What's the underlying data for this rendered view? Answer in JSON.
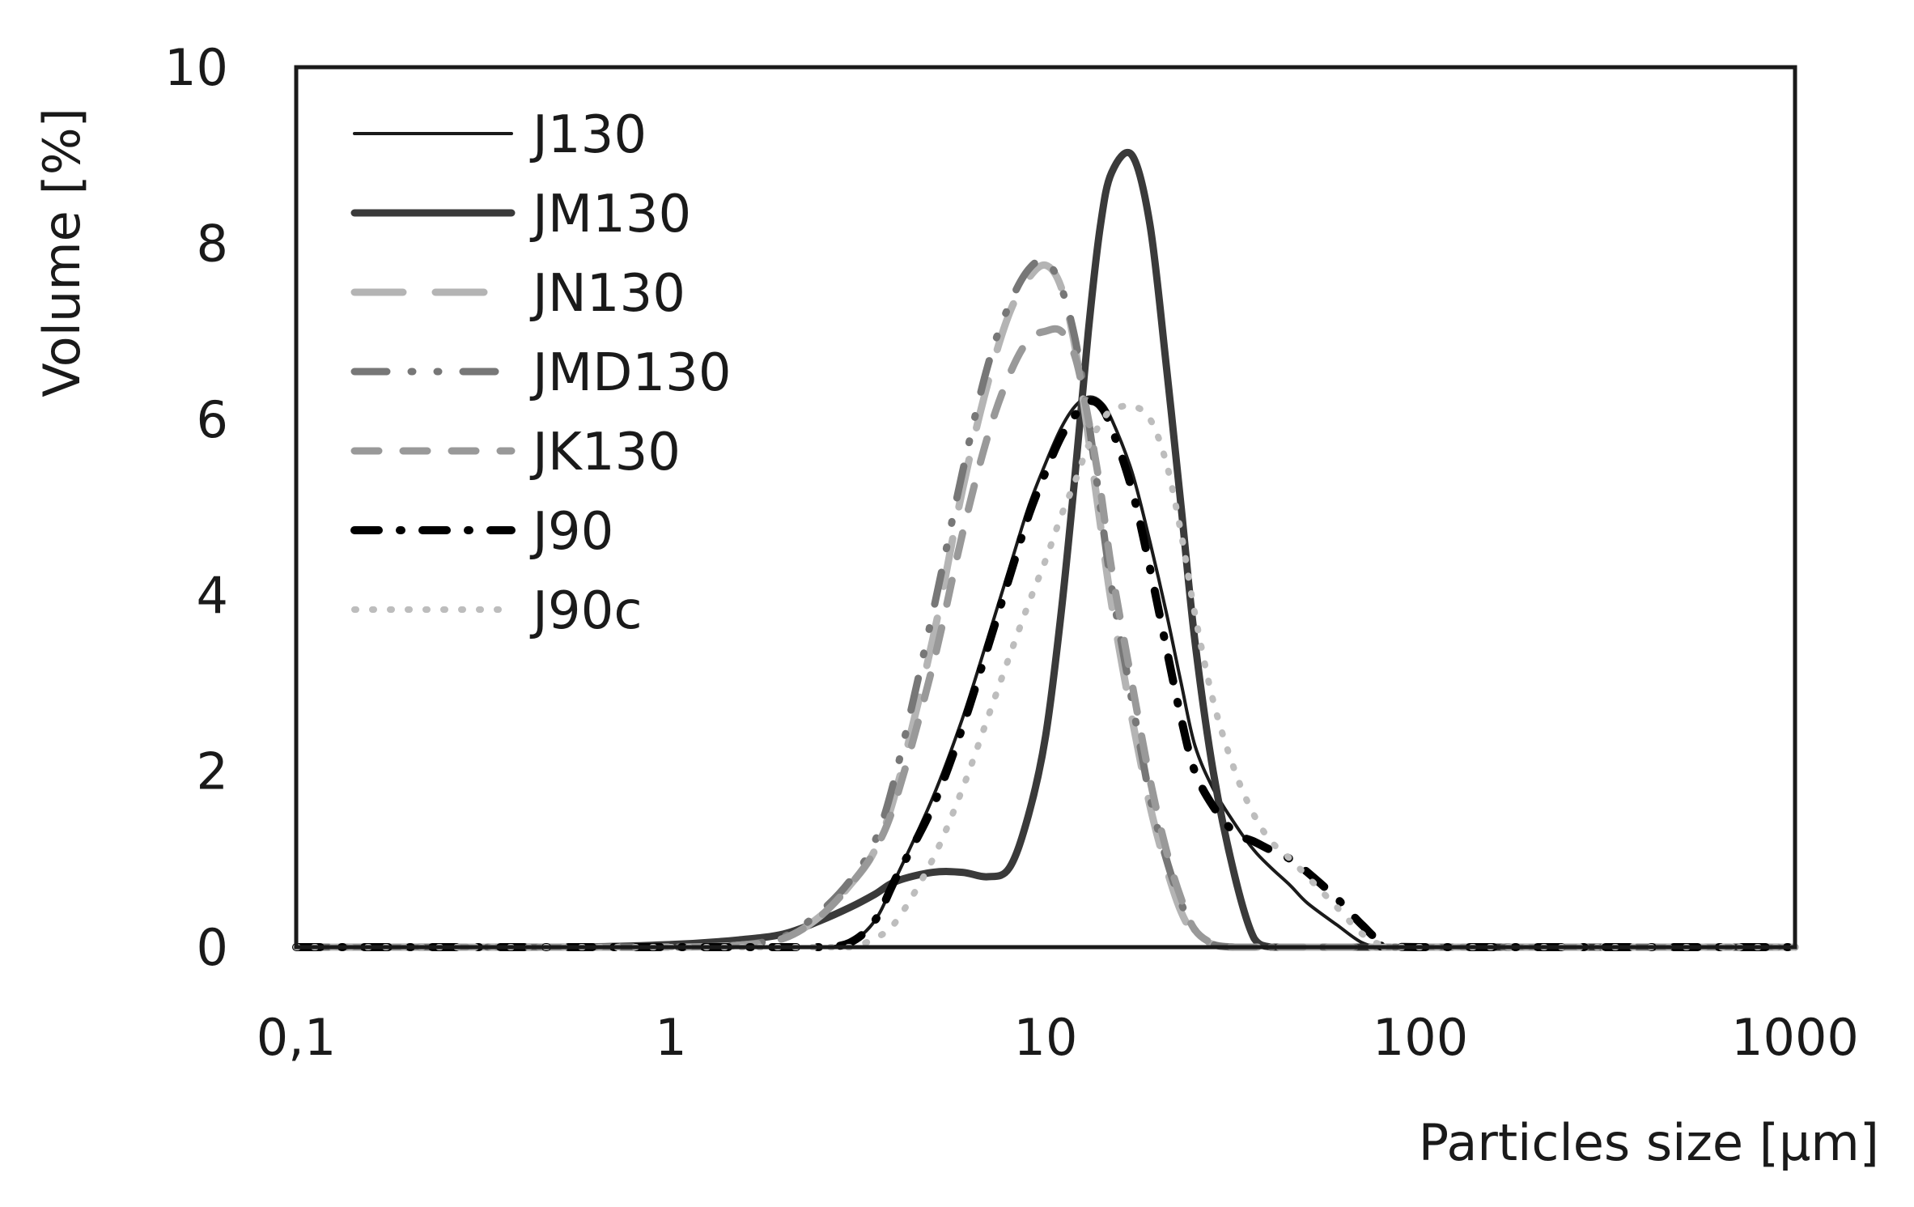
{
  "chart_data": {
    "type": "line",
    "title": "",
    "xlabel": "Particles size [µm]",
    "ylabel": "Volume [%]",
    "xscale": "log",
    "xlim": [
      0.1,
      1000
    ],
    "ylim": [
      0,
      10
    ],
    "x_ticks": [
      0.1,
      1,
      10,
      100,
      1000
    ],
    "x_tick_labels": [
      "0,1",
      "1",
      "10",
      "100",
      "1000"
    ],
    "y_ticks": [
      0,
      2,
      4,
      6,
      8,
      10
    ],
    "y_tick_labels": [
      "0",
      "2",
      "4",
      "6",
      "8",
      "10"
    ],
    "grid": false,
    "legend_position": "upper-left inside",
    "x": [
      0.1,
      0.5,
      1,
      1.5,
      2,
      2.5,
      3,
      3.5,
      4,
      5,
      6,
      7,
      8,
      9,
      10,
      11,
      12,
      13,
      14,
      15,
      17,
      19,
      21,
      23,
      25,
      28,
      32,
      36,
      40,
      45,
      50,
      60,
      70,
      80,
      100,
      1000
    ],
    "series": [
      {
        "name": "J130",
        "style": "thin-solid",
        "color": "#1a1a1a",
        "values": [
          0,
          0,
          0,
          0,
          0,
          0,
          0.05,
          0.3,
          0.8,
          1.7,
          2.6,
          3.5,
          4.3,
          5.0,
          5.5,
          5.9,
          6.15,
          6.25,
          6.2,
          6.0,
          5.4,
          4.6,
          3.8,
          3.0,
          2.3,
          1.8,
          1.4,
          1.1,
          0.9,
          0.7,
          0.5,
          0.25,
          0.05,
          0,
          0,
          0
        ]
      },
      {
        "name": "JM130",
        "style": "thick-solid",
        "color": "#3a3a3a",
        "values": [
          0,
          0,
          0.03,
          0.08,
          0.15,
          0.3,
          0.45,
          0.6,
          0.75,
          0.85,
          0.85,
          0.8,
          0.9,
          1.5,
          2.4,
          3.8,
          5.4,
          7.0,
          8.2,
          8.8,
          9.0,
          8.2,
          6.6,
          5.0,
          3.5,
          2.0,
          0.8,
          0.1,
          0,
          0,
          0,
          0,
          0,
          0,
          0,
          0
        ]
      },
      {
        "name": "JN130",
        "style": "long-dash",
        "color": "#b4b4b4",
        "values": [
          0,
          0,
          0,
          0.02,
          0.1,
          0.35,
          0.7,
          1.1,
          1.8,
          3.5,
          5.2,
          6.4,
          7.2,
          7.6,
          7.75,
          7.5,
          6.8,
          5.8,
          4.8,
          3.9,
          2.6,
          1.6,
          0.9,
          0.4,
          0.15,
          0.03,
          0,
          0,
          0,
          0,
          0,
          0,
          0,
          0,
          0,
          0
        ]
      },
      {
        "name": "JMD130",
        "style": "dash-dot-dot",
        "color": "#777777",
        "values": [
          0,
          0,
          0,
          0.02,
          0.12,
          0.4,
          0.75,
          1.2,
          2.0,
          3.8,
          5.4,
          6.6,
          7.3,
          7.7,
          7.8,
          7.5,
          6.9,
          6.0,
          5.0,
          4.1,
          2.8,
          1.7,
          1.0,
          0.5,
          0.2,
          0.03,
          0,
          0,
          0,
          0,
          0,
          0,
          0,
          0,
          0,
          0
        ]
      },
      {
        "name": "JK130",
        "style": "medium-dash",
        "color": "#999999",
        "values": [
          0,
          0,
          0,
          0.02,
          0.1,
          0.35,
          0.7,
          1.1,
          1.7,
          3.2,
          4.7,
          5.8,
          6.5,
          6.9,
          7.0,
          7.0,
          6.7,
          6.0,
          5.2,
          4.3,
          3.0,
          1.9,
          1.1,
          0.55,
          0.2,
          0.04,
          0,
          0,
          0,
          0,
          0,
          0,
          0,
          0,
          0,
          0
        ]
      },
      {
        "name": "J90",
        "style": "dash-dot",
        "color": "#000000",
        "values": [
          0,
          0,
          0,
          0,
          0,
          0,
          0.05,
          0.3,
          0.8,
          1.6,
          2.5,
          3.4,
          4.2,
          4.9,
          5.4,
          5.8,
          6.05,
          6.2,
          6.15,
          5.9,
          5.2,
          4.3,
          3.4,
          2.6,
          2.0,
          1.6,
          1.3,
          1.2,
          1.1,
          1.0,
          0.85,
          0.55,
          0.25,
          0.05,
          0,
          0
        ]
      },
      {
        "name": "J90c",
        "style": "dotted",
        "color": "#bdbdbd",
        "values": [
          0,
          0,
          0,
          0,
          0,
          0,
          0,
          0.1,
          0.3,
          1.0,
          1.8,
          2.6,
          3.3,
          3.9,
          4.4,
          4.9,
          5.3,
          5.7,
          5.95,
          6.1,
          6.15,
          6.0,
          5.5,
          4.7,
          3.8,
          2.8,
          2.0,
          1.5,
          1.2,
          1.0,
          0.8,
          0.45,
          0.15,
          0.02,
          0,
          0
        ]
      }
    ]
  },
  "legend": {
    "items": [
      {
        "label": "J130"
      },
      {
        "label": "JM130"
      },
      {
        "label": "JN130"
      },
      {
        "label": "JMD130"
      },
      {
        "label": "JK130"
      },
      {
        "label": "J90"
      },
      {
        "label": "J90c"
      }
    ]
  },
  "axes": {
    "xlabel": "Particles size [µm]",
    "ylabel": "Volume [%]"
  }
}
